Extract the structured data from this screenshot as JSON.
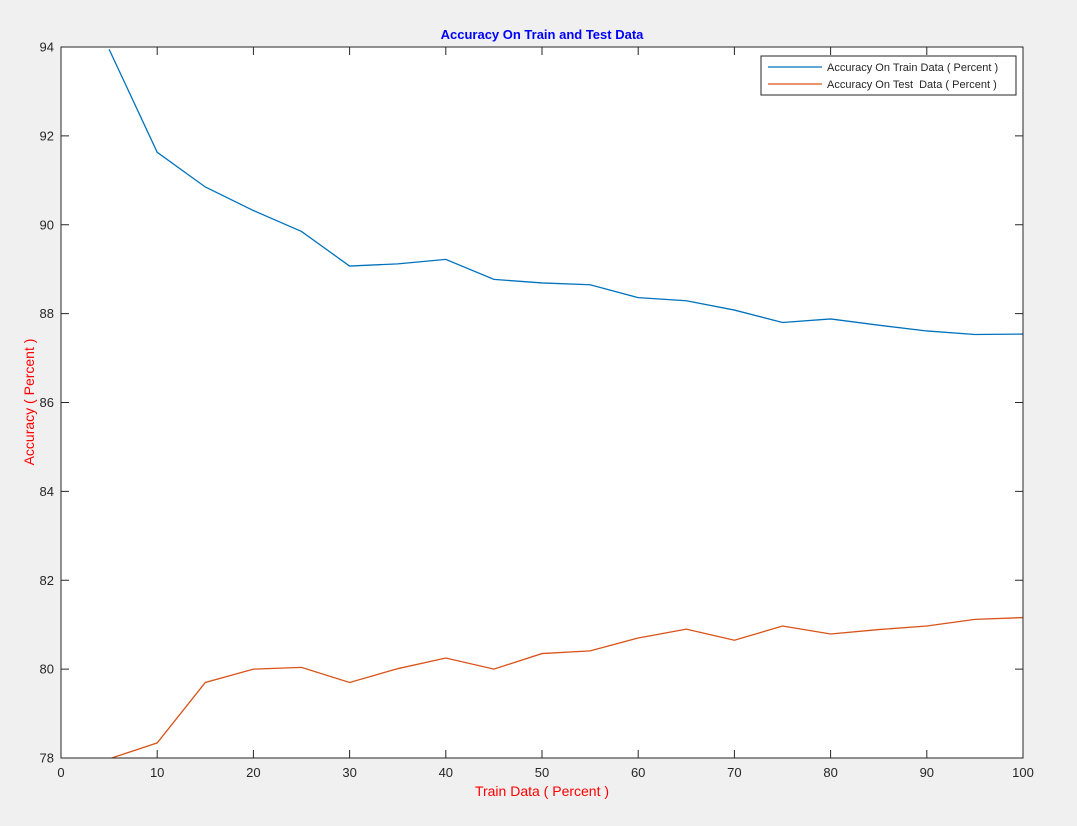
{
  "chart_data": {
    "type": "line",
    "title": "Accuracy On Train and Test Data",
    "xlabel": "Train Data ( Percent )",
    "ylabel": "Accuracy ( Percent )",
    "xlim": [
      0,
      100
    ],
    "ylim": [
      78,
      94
    ],
    "x_ticks": [
      0,
      10,
      20,
      30,
      40,
      50,
      60,
      70,
      80,
      90,
      100
    ],
    "y_ticks": [
      78,
      80,
      82,
      84,
      86,
      88,
      90,
      92,
      94
    ],
    "grid": false,
    "legend_position": "top-right",
    "x": [
      5,
      10,
      15,
      20,
      25,
      30,
      35,
      40,
      45,
      50,
      55,
      60,
      65,
      70,
      75,
      80,
      85,
      90,
      95,
      100
    ],
    "series": [
      {
        "name": "Accuracy On Train Data ( Percent )",
        "color": "#0072BD",
        "values": [
          93.95,
          91.63,
          90.85,
          90.32,
          89.85,
          89.07,
          89.12,
          89.22,
          88.77,
          88.69,
          88.65,
          88.36,
          88.29,
          88.08,
          87.8,
          87.88,
          87.74,
          87.61,
          87.53,
          87.54
        ]
      },
      {
        "name": "Accuracy On Test  Data ( Percent )",
        "color": "#D95319",
        "values": [
          77.98,
          78.34,
          79.7,
          80.0,
          80.04,
          79.7,
          80.01,
          80.25,
          80.0,
          80.35,
          80.41,
          80.7,
          80.9,
          80.65,
          80.97,
          80.79,
          80.89,
          80.97,
          81.12,
          81.16
        ]
      }
    ],
    "colors": {
      "title": "#0000FF",
      "axis_label": "#FF0000",
      "tick": "#262626",
      "axes": "#262626",
      "background": "#F0F0F0",
      "plot_background": "#FFFFFF"
    }
  }
}
